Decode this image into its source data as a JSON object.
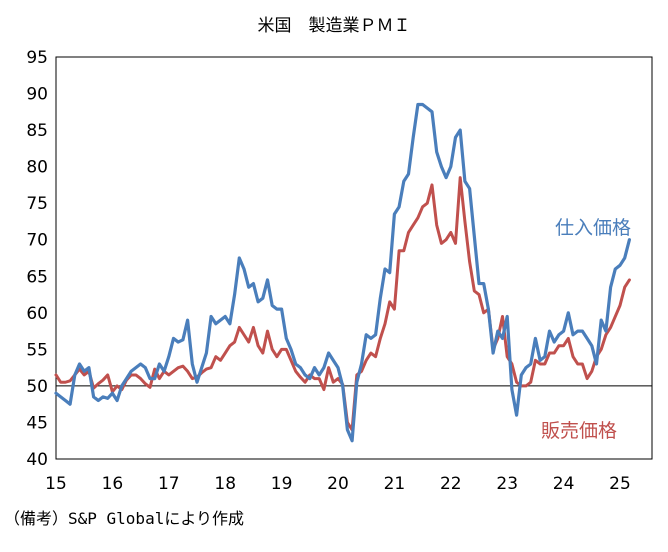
{
  "chart_data": {
    "type": "line",
    "title": "米国　製造業ＰＭＩ",
    "note": "（備考）S&P Globalにより作成",
    "ylim": [
      40,
      95
    ],
    "yticks": [
      40,
      45,
      50,
      55,
      60,
      65,
      70,
      75,
      80,
      85,
      90,
      95
    ],
    "reference_line": 50,
    "x_start_year": 2015,
    "x_tick_labels": [
      "15",
      "16",
      "17",
      "18",
      "19",
      "20",
      "21",
      "22",
      "23",
      "24",
      "25"
    ],
    "series": [
      {
        "name": "仕入価格",
        "color": "#4a7ebb",
        "values": [
          49,
          48.5,
          48,
          47.5,
          51.5,
          53,
          52,
          52.5,
          48.5,
          48,
          48.5,
          48.3,
          49,
          48,
          50,
          51,
          52,
          52.5,
          53,
          52.5,
          51,
          51,
          53,
          52,
          54,
          56.5,
          56,
          56.3,
          59,
          53,
          50.5,
          52.5,
          54.5,
          59.5,
          58.5,
          59,
          59.5,
          58.5,
          62.5,
          67.5,
          66,
          63.5,
          64,
          61.5,
          62,
          64.5,
          61,
          60.5,
          60.5,
          56.5,
          55,
          53,
          52.5,
          51.5,
          51,
          52.5,
          51.5,
          52.5,
          54.5,
          53.5,
          52.5,
          50,
          44,
          42.5,
          50.5,
          53,
          57,
          56.5,
          57,
          62,
          66,
          65.5,
          73.5,
          74.5,
          78,
          79,
          84,
          88.5,
          88.5,
          88,
          87.5,
          82,
          80,
          78.5,
          80,
          84,
          85,
          78,
          77,
          70.5,
          64,
          64,
          60.5,
          54.5,
          57.5,
          56.5,
          59.5,
          49.5,
          46,
          51.5,
          52.5,
          53,
          56.5,
          53.5,
          54,
          57.5,
          56,
          57,
          57.5,
          60,
          57,
          57.5,
          57.5,
          56.5,
          55.5,
          53,
          59,
          57.5,
          63.5,
          66,
          66.5,
          67.5,
          70
        ]
      },
      {
        "name": "販売価格",
        "color": "#c0504d",
        "values": [
          51.5,
          50.5,
          50.5,
          50.7,
          51.5,
          52.3,
          51.5,
          52,
          49.7,
          50.3,
          50.8,
          51.5,
          49.2,
          50,
          49.5,
          50.8,
          51.5,
          51.5,
          51,
          50.3,
          49.8,
          52.3,
          51,
          52,
          51.5,
          52,
          52.5,
          52.7,
          52,
          51,
          51.2,
          51.8,
          52.3,
          52.5,
          54,
          53.5,
          54.5,
          55.5,
          56,
          58,
          57,
          56,
          58,
          55.5,
          54.5,
          57.5,
          55,
          54,
          55,
          55,
          53.5,
          52,
          51.2,
          50.5,
          51.5,
          51,
          51,
          49.5,
          52.5,
          50.5,
          51,
          50.2,
          45,
          44,
          51.5,
          52,
          53.5,
          54.5,
          54,
          56.5,
          58.5,
          61.5,
          60.5,
          68.5,
          68.5,
          71,
          72,
          73,
          74.5,
          75,
          77.5,
          72,
          69.5,
          70,
          71,
          69.5,
          78.5,
          72.5,
          67,
          63,
          62.5,
          60,
          60.5,
          55,
          56.5,
          59.5,
          54,
          53,
          50.5,
          50,
          50,
          50.5,
          53.5,
          53,
          53,
          54.5,
          54.5,
          55.5,
          55.5,
          56.5,
          54,
          53,
          53,
          51,
          52,
          54,
          55,
          57,
          58,
          59.5,
          61,
          63.5,
          64.5
        ]
      }
    ]
  }
}
